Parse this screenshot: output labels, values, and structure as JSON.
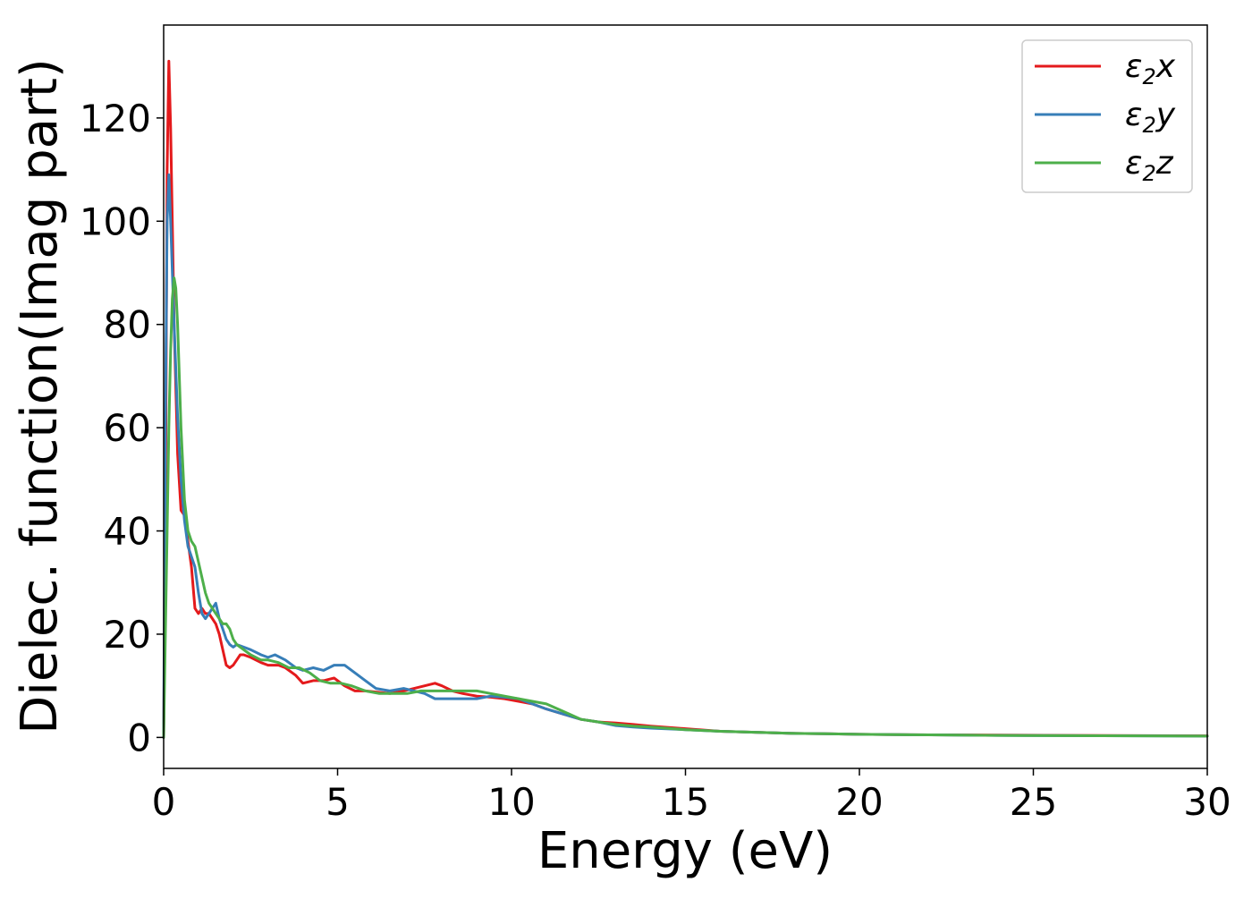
{
  "chart_data": {
    "type": "line",
    "title": "",
    "xlabel": "Energy (eV)",
    "ylabel": "Dielec. function(Imag part)",
    "xlim": [
      0,
      30
    ],
    "ylim": [
      -6,
      138
    ],
    "xticks": [
      0,
      5,
      10,
      15,
      20,
      25,
      30
    ],
    "yticks": [
      0,
      20,
      40,
      60,
      80,
      100,
      120
    ],
    "grid": false,
    "legend_position": "top-right",
    "series": [
      {
        "name": "ε2x",
        "legend_base": "ε",
        "legend_sub": "2",
        "legend_var": "x",
        "color": "#e41a1c",
        "x": [
          0,
          0.05,
          0.1,
          0.15,
          0.2,
          0.3,
          0.4,
          0.5,
          0.6,
          0.7,
          0.8,
          0.9,
          1.0,
          1.1,
          1.2,
          1.3,
          1.4,
          1.5,
          1.6,
          1.7,
          1.8,
          1.9,
          2.0,
          2.1,
          2.2,
          2.3,
          2.5,
          2.8,
          3.0,
          3.3,
          3.5,
          3.8,
          4.0,
          4.3,
          4.6,
          4.9,
          5.2,
          5.5,
          5.8,
          6.1,
          6.5,
          6.9,
          7.2,
          7.5,
          7.8,
          8.0,
          8.3,
          8.6,
          9.0,
          9.4,
          9.8,
          10.2,
          10.6,
          11.0,
          11.5,
          12.0,
          12.5,
          13.0,
          13.5,
          14.0,
          15.0,
          16.0,
          17.0,
          18.0,
          19.0,
          20.0,
          22.0,
          24.0,
          26.0,
          28.0,
          30.0
        ],
        "y": [
          0,
          40,
          110,
          131,
          118,
          80,
          55,
          44,
          43,
          38,
          33,
          25,
          24,
          25,
          24,
          24,
          23,
          22,
          20,
          17,
          14,
          13.5,
          14,
          15,
          16,
          16,
          15.5,
          14.5,
          14,
          14,
          13.5,
          12,
          10.5,
          11,
          11,
          11.5,
          10,
          9,
          9,
          8.8,
          8.5,
          9,
          9.5,
          10,
          10.5,
          10,
          9,
          8.5,
          8,
          7.8,
          7.5,
          7,
          6.5,
          5.5,
          4.5,
          3.5,
          3,
          2.8,
          2.5,
          2.2,
          1.7,
          1.2,
          1.0,
          0.8,
          0.7,
          0.6,
          0.5,
          0.45,
          0.4,
          0.35,
          0.3
        ]
      },
      {
        "name": "ε2y",
        "legend_base": "ε",
        "legend_sub": "2",
        "legend_var": "y",
        "color": "#377eb8",
        "x": [
          0,
          0.05,
          0.1,
          0.15,
          0.2,
          0.3,
          0.4,
          0.5,
          0.6,
          0.7,
          0.8,
          0.9,
          1.0,
          1.1,
          1.2,
          1.3,
          1.4,
          1.5,
          1.6,
          1.7,
          1.8,
          1.9,
          2.0,
          2.1,
          2.3,
          2.5,
          2.8,
          3.0,
          3.2,
          3.5,
          3.8,
          4.0,
          4.3,
          4.6,
          4.9,
          5.2,
          5.5,
          5.8,
          6.1,
          6.5,
          6.9,
          7.2,
          7.5,
          7.8,
          8.2,
          8.6,
          9.0,
          9.4,
          9.8,
          10.2,
          10.6,
          11.0,
          11.5,
          12.0,
          12.5,
          13.0,
          13.5,
          14.0,
          15.0,
          16.0,
          17.0,
          18.0,
          19.0,
          20.0,
          22.0,
          24.0,
          26.0,
          28.0,
          30.0
        ],
        "y": [
          0,
          60,
          100,
          109,
          100,
          80,
          62,
          50,
          42,
          37,
          35,
          33,
          28,
          24,
          23,
          24,
          25,
          26,
          23,
          21,
          19,
          18,
          17.5,
          18,
          17.5,
          17,
          16,
          15.5,
          16,
          15,
          13.5,
          13,
          13.5,
          13,
          14,
          14,
          12.5,
          11,
          9.5,
          9,
          9.5,
          9,
          8.5,
          7.5,
          7.5,
          7.5,
          7.5,
          8,
          7.8,
          7.5,
          6.5,
          5.5,
          4.5,
          3.5,
          3.0,
          2.3,
          2.0,
          1.8,
          1.5,
          1.2,
          1.0,
          0.8,
          0.7,
          0.6,
          0.5,
          0.4,
          0.35,
          0.3,
          0.25
        ]
      },
      {
        "name": "ε2z",
        "legend_base": "ε",
        "legend_sub": "2",
        "legend_var": "z",
        "color": "#4daf4a",
        "x": [
          0,
          0.05,
          0.1,
          0.15,
          0.2,
          0.25,
          0.3,
          0.35,
          0.4,
          0.5,
          0.6,
          0.7,
          0.8,
          0.9,
          1.0,
          1.1,
          1.2,
          1.3,
          1.4,
          1.5,
          1.6,
          1.7,
          1.8,
          1.9,
          2.0,
          2.1,
          2.3,
          2.5,
          2.8,
          3.0,
          3.3,
          3.6,
          3.9,
          4.2,
          4.5,
          4.8,
          5.1,
          5.4,
          5.8,
          6.2,
          6.6,
          7.0,
          7.4,
          7.8,
          8.2,
          8.6,
          9.0,
          9.4,
          9.8,
          10.2,
          10.6,
          11.0,
          11.5,
          12.0,
          12.5,
          13.0,
          13.5,
          14.0,
          15.0,
          16.0,
          17.0,
          18.0,
          19.0,
          20.0,
          22.0,
          24.0,
          26.0,
          28.0,
          30.0
        ],
        "y": [
          0,
          20,
          40,
          60,
          75,
          85,
          89,
          87,
          80,
          60,
          46,
          40,
          38,
          37,
          34,
          31,
          28,
          26,
          25,
          24,
          23,
          22,
          22,
          21,
          19,
          18,
          17,
          16,
          15,
          15,
          14.5,
          13.5,
          13.5,
          12.5,
          11,
          10.5,
          10.5,
          10,
          9,
          8.5,
          8.5,
          8.5,
          9,
          9,
          9,
          9,
          9,
          8.5,
          8,
          7.5,
          7,
          6.5,
          5,
          3.5,
          3.0,
          2.5,
          2.2,
          2.0,
          1.5,
          1.2,
          1.0,
          0.8,
          0.7,
          0.6,
          0.5,
          0.4,
          0.35,
          0.3,
          0.25
        ]
      }
    ]
  }
}
